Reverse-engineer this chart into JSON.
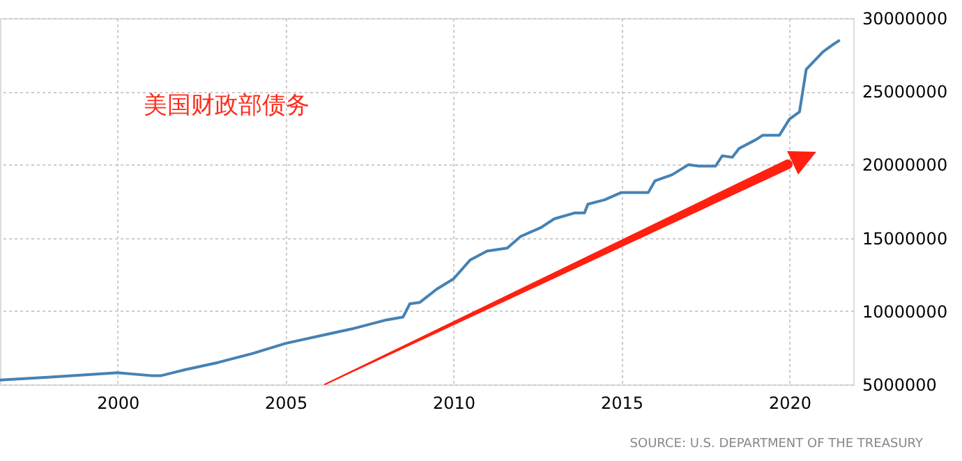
{
  "chart_data": {
    "type": "line",
    "x": [
      1996.5,
      1998,
      2000,
      2001,
      2001.3,
      2002,
      2003,
      2004,
      2005,
      2006,
      2007,
      2008,
      2008.5,
      2008.7,
      2009,
      2009.5,
      2010,
      2010.5,
      2011,
      2011.6,
      2012,
      2012.6,
      2013,
      2013.6,
      2013.9,
      2014,
      2014.5,
      2015,
      2015.8,
      2016,
      2016.5,
      2017,
      2017.3,
      2017.8,
      2018,
      2018.3,
      2018.5,
      2019,
      2019.2,
      2019.7,
      2020,
      2020.3,
      2020.5,
      2021,
      2021.3,
      2021.5
    ],
    "series": [
      {
        "color": "#4682b4",
        "values": [
          5300000,
          5500000,
          5800000,
          5600000,
          5600000,
          6000000,
          6500000,
          7100000,
          7800000,
          8300000,
          8800000,
          9400000,
          9600000,
          10500000,
          10600000,
          11500000,
          12200000,
          13500000,
          14100000,
          14300000,
          15100000,
          15700000,
          16300000,
          16700000,
          16700000,
          17300000,
          17600000,
          18100000,
          18100000,
          18900000,
          19300000,
          20000000,
          19900000,
          19900000,
          20600000,
          20500000,
          21100000,
          21700000,
          22000000,
          22000000,
          23100000,
          23600000,
          26500000,
          27700000,
          28200000,
          28500000
        ]
      }
    ],
    "xlim": [
      1996.5,
      2021.9
    ],
    "xticks": [
      2000,
      2005,
      2010,
      2015,
      2020
    ],
    "ylim": [
      5000000,
      30000000
    ],
    "yticks": [
      5000000,
      10000000,
      15000000,
      20000000,
      25000000,
      30000000
    ],
    "grid": true,
    "line_style": "solid",
    "marker": "none",
    "annotations": [
      "美国财政部债务",
      "SOURCE: U.S. DEPARTMENT OF THE TREASURY"
    ]
  }
}
